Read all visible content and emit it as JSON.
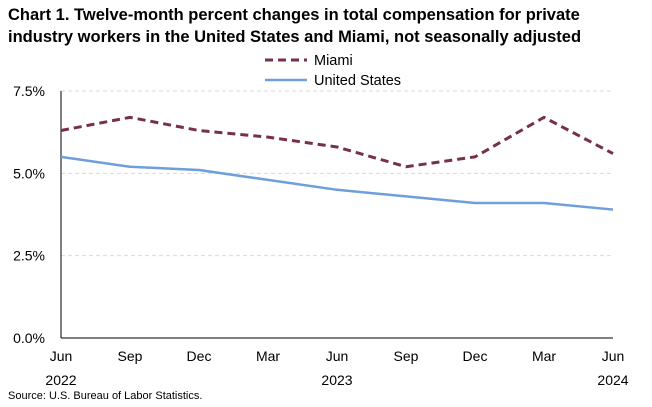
{
  "title": "Chart 1. Twelve-month percent changes in total compensation for private industry workers in the United States and Miami, not seasonally adjusted",
  "source": "Source: U.S. Bureau of Labor Statistics.",
  "chart_data": {
    "type": "line",
    "x": [
      "Jun 2022",
      "Sep 2022",
      "Dec 2022",
      "Mar 2023",
      "Jun 2023",
      "Sep 2023",
      "Dec 2023",
      "Mar 2024",
      "Jun 2024"
    ],
    "x_tick_labels": [
      "Jun",
      "Sep",
      "Dec",
      "Mar",
      "Jun",
      "Sep",
      "Dec",
      "Mar",
      "Jun"
    ],
    "x_year_labels": [
      {
        "index": 0,
        "label": "2022"
      },
      {
        "index": 4,
        "label": "2023"
      },
      {
        "index": 8,
        "label": "2024"
      }
    ],
    "y_ticks": [
      0,
      2.5,
      5.0,
      7.5
    ],
    "y_tick_labels": [
      "0.0%",
      "2.5%",
      "5.0%",
      "7.5%"
    ],
    "ylim": [
      0,
      7.5
    ],
    "grid": true,
    "legend_position": "top-center",
    "series": [
      {
        "name": "Miami",
        "values": [
          6.3,
          6.7,
          6.3,
          6.1,
          5.8,
          5.2,
          5.5,
          6.7,
          5.6
        ],
        "color": "#772f4a",
        "style": "dashed"
      },
      {
        "name": "United States",
        "values": [
          5.5,
          5.2,
          5.1,
          4.8,
          4.5,
          4.3,
          4.1,
          4.1,
          3.9
        ],
        "color": "#6f9fda",
        "style": "solid"
      }
    ]
  }
}
